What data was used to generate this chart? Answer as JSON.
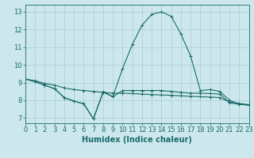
{
  "title": "",
  "xlabel": "Humidex (Indice chaleur)",
  "bg_color": "#cce8ec",
  "line_color": "#1a6b6b",
  "grid_color": "#aaccd4",
  "series": [
    {
      "x": [
        0,
        1,
        2,
        3,
        4,
        5,
        6,
        7,
        8,
        9,
        10,
        11,
        12,
        13,
        14,
        15,
        16,
        17,
        18,
        19,
        20,
        21,
        22,
        23
      ],
      "y": [
        9.2,
        9.1,
        8.95,
        8.85,
        8.7,
        8.6,
        8.55,
        8.5,
        8.45,
        8.4,
        8.4,
        8.38,
        8.35,
        8.32,
        8.3,
        8.28,
        8.25,
        8.22,
        8.2,
        8.18,
        8.15,
        7.9,
        7.82,
        7.75
      ]
    },
    {
      "x": [
        0,
        1,
        2,
        3,
        4,
        5,
        6,
        7,
        8,
        9,
        10,
        11,
        12,
        13,
        14,
        15,
        16,
        17,
        18,
        19,
        20,
        21,
        22,
        23
      ],
      "y": [
        9.2,
        9.05,
        8.85,
        8.65,
        8.15,
        7.95,
        7.8,
        6.95,
        8.45,
        8.2,
        8.55,
        8.55,
        8.55,
        8.55,
        8.55,
        8.5,
        8.45,
        8.4,
        8.4,
        8.38,
        8.35,
        7.85,
        7.78,
        7.72
      ]
    },
    {
      "x": [
        0,
        1,
        2,
        3,
        4,
        5,
        6,
        7,
        8,
        9,
        10,
        11,
        12,
        13,
        14,
        15,
        16,
        17,
        18,
        19,
        20,
        21,
        22,
        23
      ],
      "y": [
        9.2,
        9.05,
        8.85,
        8.65,
        8.15,
        7.95,
        7.8,
        6.95,
        8.5,
        8.2,
        9.8,
        11.15,
        12.25,
        12.85,
        13.0,
        12.75,
        11.75,
        10.5,
        8.55,
        8.6,
        8.5,
        8.0,
        7.78,
        7.72
      ]
    }
  ],
  "xlim": [
    0,
    23
  ],
  "ylim": [
    6.7,
    13.4
  ],
  "yticks": [
    7,
    8,
    9,
    10,
    11,
    12,
    13
  ],
  "xticks": [
    0,
    1,
    2,
    3,
    4,
    5,
    6,
    7,
    8,
    9,
    10,
    11,
    12,
    13,
    14,
    15,
    16,
    17,
    18,
    19,
    20,
    21,
    22,
    23
  ],
  "marker": "+",
  "markersize": 3,
  "linewidth": 0.8,
  "xlabel_fontsize": 7,
  "tick_fontsize": 6
}
